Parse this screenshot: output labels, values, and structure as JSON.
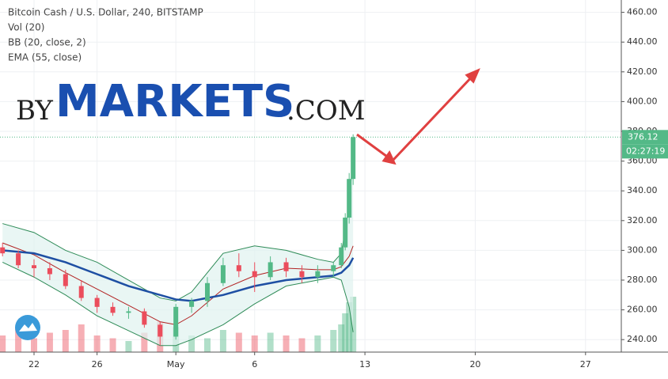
{
  "chart_data": {
    "type": "candlestick",
    "title": "Bitcoin Cash / U.S. Dollar, 240, BITSTAMP",
    "indicators": [
      "Vol (20)",
      "BB (20, close, 2)",
      "EMA (55, close)"
    ],
    "watermark": [
      "BY",
      "MARKETS",
      ".COM"
    ],
    "x": [
      20,
      21,
      22,
      23,
      24,
      25,
      26,
      27,
      28,
      29,
      30,
      31,
      32,
      33,
      34,
      35,
      36,
      37,
      38,
      39,
      40,
      41,
      41.5,
      41.75,
      42,
      42.25
    ],
    "open": [
      302,
      298,
      290,
      288,
      284,
      276,
      268,
      262,
      258,
      259,
      250,
      242,
      262,
      266,
      278,
      290,
      286,
      282,
      292,
      286,
      282,
      286,
      290,
      302,
      322,
      348
    ],
    "high": [
      305,
      300,
      294,
      292,
      287,
      280,
      270,
      265,
      262,
      261,
      252,
      264,
      268,
      282,
      295,
      298,
      292,
      296,
      295,
      290,
      290,
      292,
      305,
      325,
      352,
      378
    ],
    "low": [
      296,
      288,
      282,
      280,
      274,
      266,
      258,
      256,
      254,
      248,
      236,
      240,
      258,
      262,
      276,
      282,
      272,
      280,
      282,
      278,
      278,
      282,
      288,
      300,
      318,
      344
    ],
    "close": [
      298,
      290,
      288,
      284,
      276,
      268,
      262,
      258,
      259,
      250,
      242,
      262,
      266,
      278,
      290,
      286,
      282,
      292,
      286,
      282,
      286,
      290,
      302,
      322,
      348,
      376.12
    ],
    "volume": [
      30,
      45,
      25,
      35,
      40,
      50,
      30,
      25,
      20,
      35,
      55,
      45,
      30,
      25,
      40,
      35,
      30,
      35,
      30,
      25,
      30,
      40,
      50,
      70,
      90,
      100
    ],
    "up_color": "#53b987",
    "down_color": "#eb4d5c",
    "line_x": [
      20,
      22,
      24,
      26,
      28,
      30,
      31,
      32,
      34,
      36,
      38,
      40,
      41,
      41.5,
      42,
      42.25
    ],
    "lines": [
      {
        "color": "#2e8b57",
        "values": [
          318,
          312,
          300,
          292,
          280,
          268,
          266,
          272,
          298,
          303,
          300,
          294,
          292,
          298,
          330,
          365
        ]
      },
      {
        "color": "#2e8b57",
        "values": [
          292,
          282,
          270,
          256,
          246,
          236,
          236,
          240,
          250,
          264,
          276,
          280,
          282,
          280,
          262,
          245
        ]
      },
      {
        "color": "#b22222",
        "values": [
          305,
          297,
          285,
          274,
          263,
          252,
          250,
          256,
          274,
          283,
          288,
          287,
          287,
          289,
          296,
          303
        ]
      },
      {
        "color": "#1e4fa3",
        "values": [
          300,
          298,
          292,
          284,
          276,
          270,
          267,
          266,
          270,
          276,
          280,
          282,
          283,
          285,
          290,
          295
        ]
      }
    ],
    "last_price": 376.12,
    "last_price_label": "376.12",
    "countdown": "02:27:19",
    "xlim": [
      19.84,
      59.27
    ],
    "xticks": [
      {
        "value": 22,
        "label": "22"
      },
      {
        "value": 26,
        "label": "26"
      },
      {
        "value": 31,
        "label": "May"
      },
      {
        "value": 36,
        "label": "6"
      },
      {
        "value": 43,
        "label": "13"
      },
      {
        "value": 50,
        "label": "20"
      },
      {
        "value": 57,
        "label": "27"
      }
    ],
    "ylim": [
      231.6,
      468.3
    ],
    "yticks": [
      {
        "value": 240,
        "label": "240.00"
      },
      {
        "value": 260,
        "label": "260.00"
      },
      {
        "value": 280,
        "label": "280.00"
      },
      {
        "value": 300,
        "label": "300.00"
      },
      {
        "value": 320,
        "label": "320.00"
      },
      {
        "value": 340,
        "label": "340.00"
      },
      {
        "value": 360,
        "label": "360.00"
      },
      {
        "value": 380,
        "label": "380.00"
      },
      {
        "value": 400,
        "label": "400.00"
      },
      {
        "value": 420,
        "label": "420.00"
      },
      {
        "value": 440,
        "label": "440.00"
      },
      {
        "value": 460,
        "label": "460.00"
      }
    ],
    "grid": true
  }
}
